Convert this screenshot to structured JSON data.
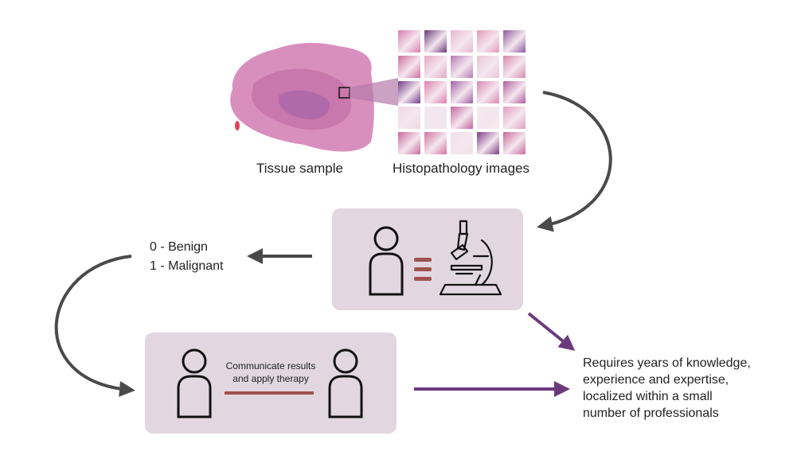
{
  "labels": {
    "tissue_sample": "Tissue sample",
    "histopathology_images": "Histopathology images"
  },
  "classification": {
    "benign": "0 - Benign",
    "malignant": "1 - Malignant"
  },
  "communication": {
    "line1": "Communicate results",
    "line2": "and apply therapy"
  },
  "requirement": {
    "line1": "Requires years of knowledge,",
    "line2": "experience and expertise,",
    "line3": "localized within a small",
    "line4": "number of professionals"
  },
  "colors": {
    "box_fill": "#e2d7e0",
    "gray_arrow": "#4a4a4a",
    "purple_arrow": "#6b3a7d",
    "red_connector": "#a0524f",
    "tissue_pink": "#d98fbe"
  },
  "icons": [
    "person-icon",
    "microscope-icon",
    "zoom-box-icon"
  ],
  "tile_colors": [
    [
      "#d67fb0",
      "#6a3b7a",
      "#e7b8cf",
      "#e69ab7",
      "#8e5b9c"
    ],
    [
      "#cf6c9c",
      "#e3a9c4",
      "#b679b3",
      "#e9c6d4",
      "#d889ad"
    ],
    [
      "#6f3d86",
      "#e07cb0",
      "#9f5ea8",
      "#d986b4",
      "#b05f9a"
    ],
    [
      "#f1d9e2",
      "#efe8ec",
      "#c4649f",
      "#f5ecec",
      "#e39ebf"
    ],
    [
      "#c8689e",
      "#d4739f",
      "#efe3e6",
      "#7d3c84",
      "#c76a9b"
    ]
  ]
}
